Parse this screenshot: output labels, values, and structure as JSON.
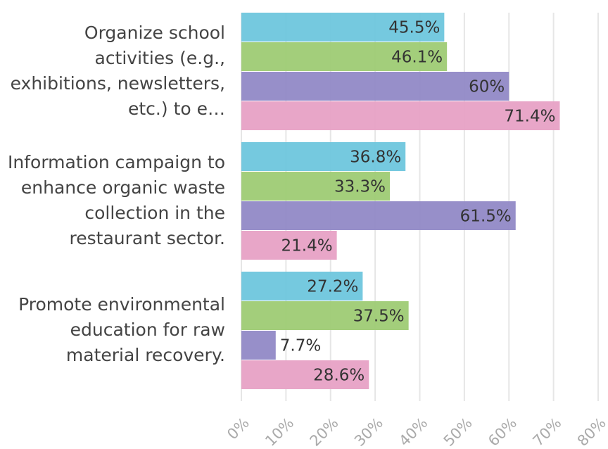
{
  "chart_data": {
    "type": "bar",
    "orientation": "horizontal",
    "categories": [
      "Organize school activities (e.g., exhibitions, newsletters, etc.) to e…",
      "Information campaign to enhance organic waste collection in the restaurant sector.",
      "Promote environmental education for raw material recovery."
    ],
    "series": [
      {
        "color": "#6ec6dd",
        "values": [
          45.5,
          36.8,
          27.2
        ],
        "value_labels": [
          "45.5%",
          "36.8%",
          "27.2%"
        ]
      },
      {
        "color": "#9ecb74",
        "values": [
          46.1,
          33.3,
          37.5
        ],
        "value_labels": [
          "46.1%",
          "33.3%",
          "37.5%"
        ]
      },
      {
        "color": "#9189c6",
        "values": [
          60,
          61.5,
          7.7
        ],
        "value_labels": [
          "60%",
          "61.5%",
          "7.7%"
        ]
      },
      {
        "color": "#e7a1c5",
        "values": [
          71.4,
          21.4,
          28.6
        ],
        "value_labels": [
          "71.4%",
          "21.4%",
          "28.6%"
        ]
      }
    ],
    "xlim": [
      0,
      80
    ],
    "xticks": [
      {
        "value": 0,
        "label": "0%"
      },
      {
        "value": 10,
        "label": "10%"
      },
      {
        "value": 20,
        "label": "20%"
      },
      {
        "value": 30,
        "label": "30%"
      },
      {
        "value": 40,
        "label": "40%"
      },
      {
        "value": 50,
        "label": "50%"
      },
      {
        "value": 60,
        "label": "60%"
      },
      {
        "value": 70,
        "label": "70%"
      },
      {
        "value": 80,
        "label": "80%"
      }
    ],
    "grid": true
  }
}
